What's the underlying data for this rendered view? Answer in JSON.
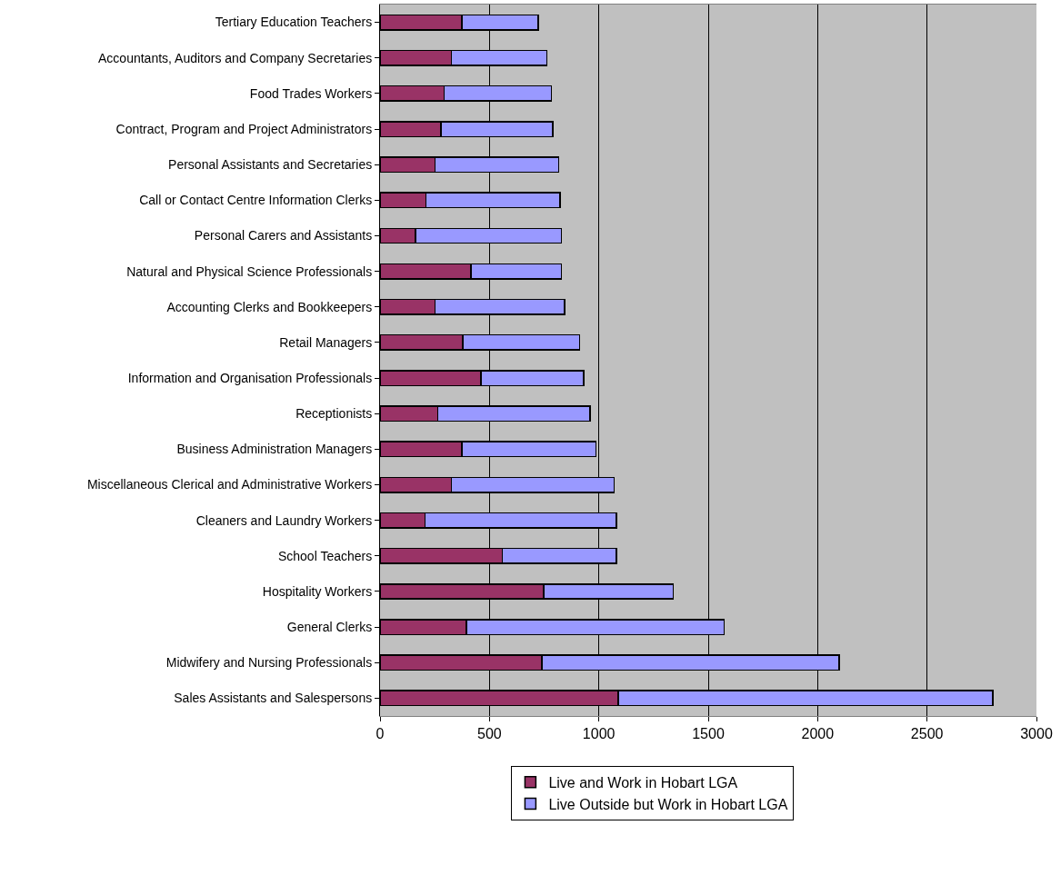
{
  "chart_data": {
    "type": "bar",
    "orientation": "horizontal",
    "stacked": true,
    "categories": [
      "Tertiary Education Teachers",
      "Accountants, Auditors and Company Secretaries",
      "Food Trades Workers",
      "Contract, Program and Project Administrators",
      "Personal Assistants and Secretaries",
      "Call or Contact Centre Information Clerks",
      "Personal Carers and Assistants",
      "Natural and Physical Science Professionals",
      "Accounting Clerks and Bookkeepers",
      "Retail Managers",
      "Information and Organisation Professionals",
      "Receptionists",
      "Business Administration Managers",
      "Miscellaneous Clerical and Administrative Workers",
      "Cleaners and Laundry Workers",
      "School Teachers",
      "Hospitality Workers",
      "General Clerks",
      "Midwifery and Nursing Professionals",
      "Sales Assistants and Salespersons"
    ],
    "series": [
      {
        "name": "Live and Work in Hobart LGA",
        "color": "#993366",
        "values": [
          373,
          326,
          293,
          279,
          252,
          210,
          162,
          415,
          252,
          379,
          462,
          264,
          373,
          326,
          205,
          559,
          748,
          394,
          740,
          1088
        ]
      },
      {
        "name": "Live Outside but Work in Hobart LGA",
        "color": "#9999ff",
        "values": [
          349,
          436,
          490,
          511,
          564,
          613,
          666,
          413,
          592,
          532,
          469,
          696,
          613,
          743,
          876,
          522,
          592,
          1179,
          1359,
          1712
        ]
      }
    ],
    "xlim": [
      0,
      3000
    ],
    "xticks": [
      0,
      500,
      1000,
      1500,
      2000,
      2500,
      3000
    ],
    "grid": "x",
    "legend": "bottom"
  }
}
